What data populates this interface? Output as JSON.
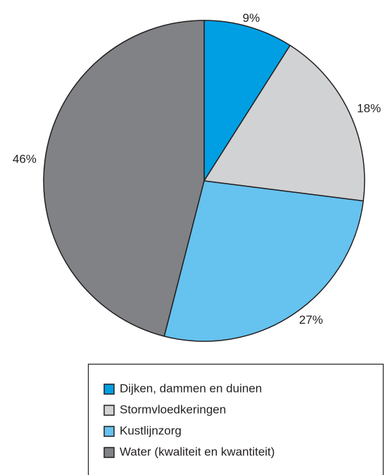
{
  "chart_data": {
    "type": "pie",
    "categories": [
      "Dijken, dammen en duinen",
      "Stormvloedkeringen",
      "Kustlijnzorg",
      "Water (kwaliteit en kwantiteit)"
    ],
    "values": [
      9,
      18,
      27,
      46
    ],
    "value_labels": [
      "9%",
      "18%",
      "27%",
      "46%"
    ],
    "colors": [
      "#009fe3",
      "#d1d2d4",
      "#66c2ee",
      "#808285"
    ],
    "legend": "bottom"
  }
}
